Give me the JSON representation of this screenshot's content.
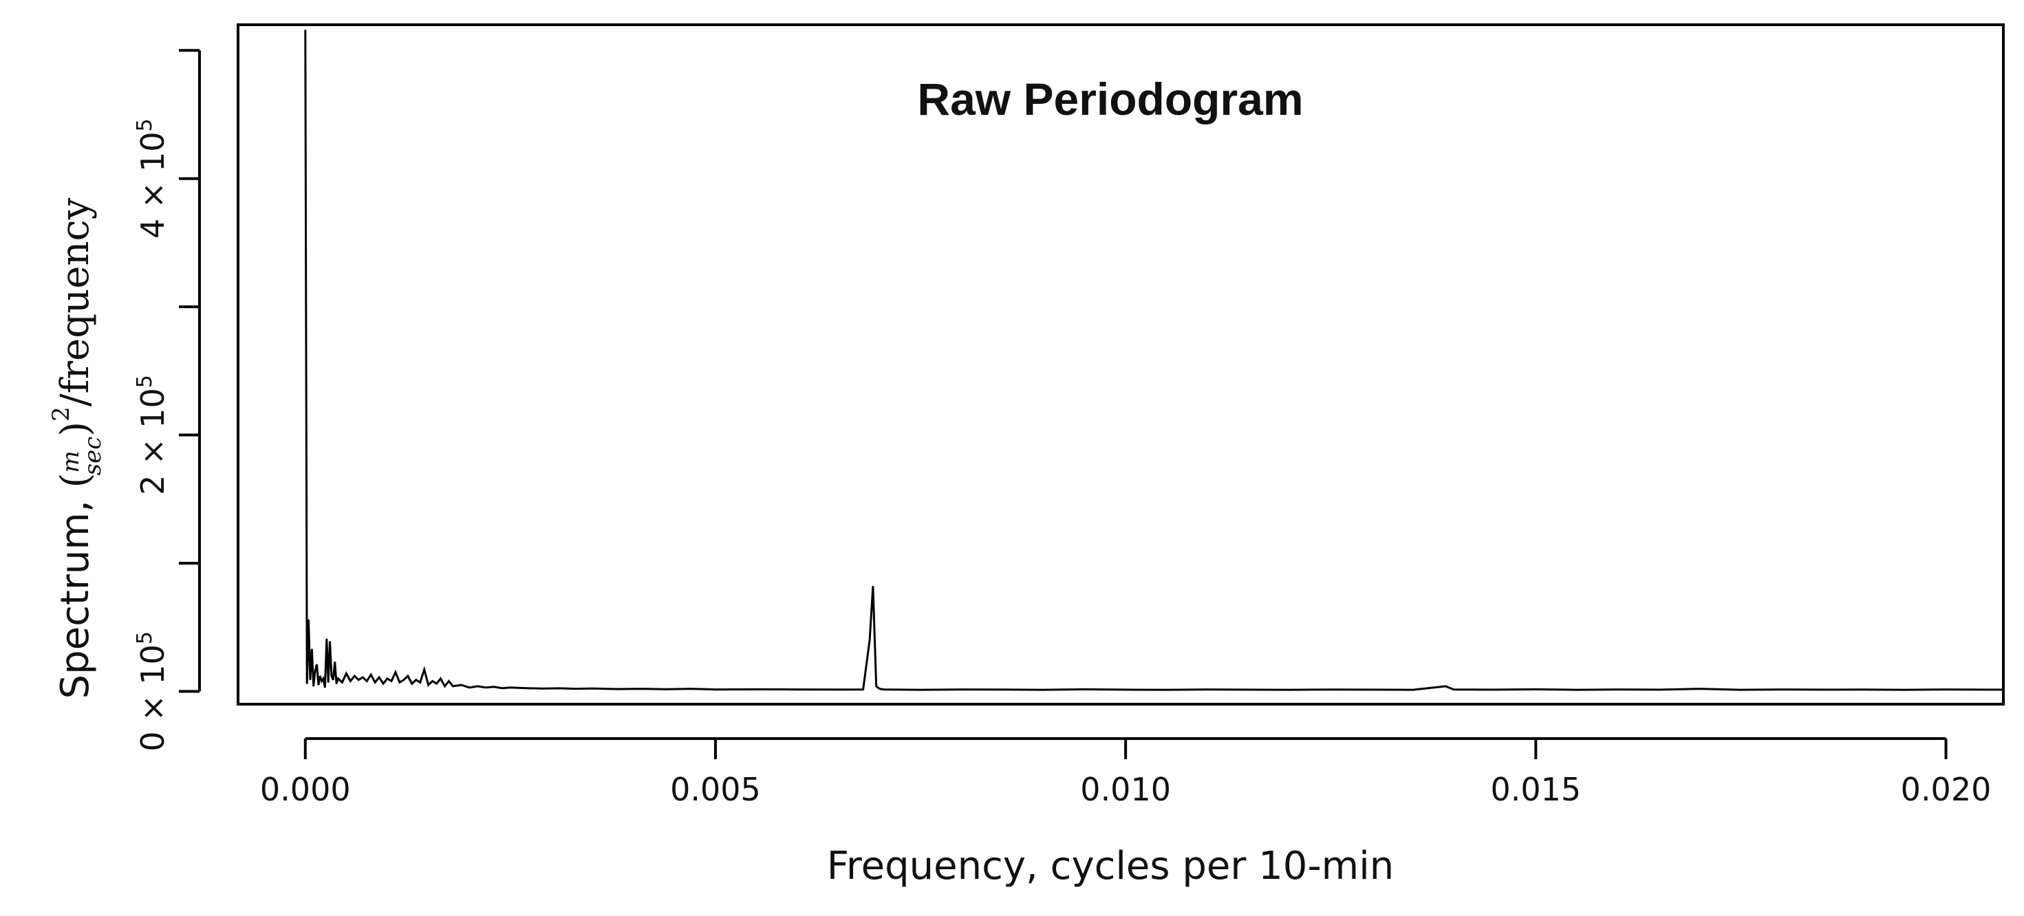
{
  "chart_data": {
    "type": "line",
    "title": "Raw Periodogram",
    "xlabel": "Frequency, cycles per 10-min",
    "ylabel": {
      "prefix": "Spectrum, ",
      "unit_numerator": "m",
      "unit_denominator": "sec",
      "unit_power": "2",
      "suffix": "/frequency"
    },
    "xlim": [
      -0.00082,
      0.0207
    ],
    "ylim": [
      -10000,
      520000
    ],
    "x_ticks": [
      0.0,
      0.005,
      0.01,
      0.015,
      0.02
    ],
    "x_tick_labels": [
      "0.000",
      "0.005",
      "0.010",
      "0.015",
      "0.020"
    ],
    "y_ticks": [
      0,
      100000,
      200000,
      300000,
      400000,
      500000
    ],
    "y_tick_labels": [
      {
        "value": 0,
        "mantissa": "0 × 10",
        "exponent": "5"
      },
      {
        "value": 100000,
        "mantissa": "",
        "exponent": ""
      },
      {
        "value": 200000,
        "mantissa": "2 × 10",
        "exponent": "5"
      },
      {
        "value": 300000,
        "mantissa": "",
        "exponent": ""
      },
      {
        "value": 400000,
        "mantissa": "4 × 10",
        "exponent": "5"
      },
      {
        "value": 500000,
        "mantissa": "",
        "exponent": ""
      }
    ],
    "line_color": "#000000",
    "series": [
      {
        "name": "raw periodogram",
        "x": [
          0.0,
          2e-05,
          4e-05,
          6e-05,
          8e-05,
          0.0001,
          0.00012,
          0.00014,
          0.00016,
          0.00018,
          0.0002,
          0.00022,
          0.00024,
          0.00026,
          0.00028,
          0.0003,
          0.00032,
          0.00034,
          0.00036,
          0.00038,
          0.0004,
          0.00045,
          0.0005,
          0.00055,
          0.0006,
          0.00065,
          0.0007,
          0.00075,
          0.0008,
          0.00085,
          0.0009,
          0.00095,
          0.001,
          0.00105,
          0.0011,
          0.00115,
          0.0012,
          0.00125,
          0.0013,
          0.00135,
          0.0014,
          0.00145,
          0.0015,
          0.00155,
          0.0016,
          0.00165,
          0.0017,
          0.00175,
          0.0018,
          0.0019,
          0.002,
          0.0021,
          0.0022,
          0.0023,
          0.0024,
          0.0025,
          0.0027,
          0.0029,
          0.0031,
          0.0033,
          0.0035,
          0.0038,
          0.0041,
          0.0044,
          0.0047,
          0.005,
          0.0055,
          0.006,
          0.0065,
          0.0068,
          0.00688,
          0.00692,
          0.00696,
          0.007,
          0.00705,
          0.0075,
          0.008,
          0.0085,
          0.009,
          0.0095,
          0.01,
          0.0105,
          0.011,
          0.0115,
          0.012,
          0.0125,
          0.013,
          0.0135,
          0.0139,
          0.014,
          0.0145,
          0.015,
          0.0155,
          0.016,
          0.0165,
          0.017,
          0.0175,
          0.018,
          0.0185,
          0.019,
          0.0195,
          0.02,
          0.0205,
          0.0207
        ],
        "y": [
          516000,
          6000,
          56000,
          9000,
          33000,
          4000,
          16000,
          21000,
          5000,
          12000,
          8000,
          10000,
          3000,
          41000,
          7000,
          39000,
          12000,
          9000,
          23000,
          6000,
          10000,
          7000,
          14000,
          8000,
          12000,
          9000,
          11000,
          8000,
          13000,
          7000,
          11000,
          6000,
          10000,
          8000,
          15000,
          7000,
          9000,
          12000,
          6000,
          9000,
          7000,
          17000,
          5000,
          8000,
          6000,
          10000,
          4000,
          8000,
          4000,
          5000,
          3000,
          4000,
          3000,
          3500,
          2500,
          3000,
          2500,
          2200,
          2400,
          2000,
          2300,
          1800,
          2000,
          1700,
          2000,
          1500,
          1600,
          1500,
          1400,
          1500,
          40000,
          82000,
          4000,
          2000,
          1500,
          1200,
          1500,
          1400,
          1200,
          1600,
          1300,
          1200,
          1500,
          1300,
          1200,
          1400,
          1300,
          1200,
          4000,
          1500,
          1300,
          1600,
          1200,
          1500,
          1300,
          2000,
          1200,
          1500,
          1300,
          1400,
          1200,
          1500,
          1300,
          1300
        ]
      }
    ]
  }
}
